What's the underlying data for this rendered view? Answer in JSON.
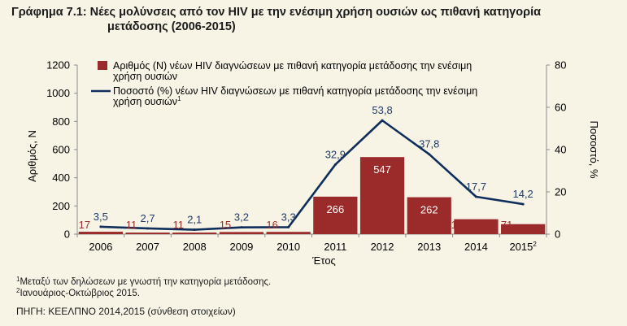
{
  "title": {
    "line1": "Γράφημα 7.1: Νέες μολύνσεις από τον HIV με την ενέσιμη χρήση ουσιών ως πιθανή κατηγορία",
    "line2": "μετάδοσης (2006-2015)"
  },
  "chart_data": {
    "type": "bar",
    "categories": [
      "2006",
      "2007",
      "2008",
      "2009",
      "2010",
      "2011",
      "2012",
      "2013",
      "2014",
      "2015"
    ],
    "category_superscripts": [
      "",
      "",
      "",
      "",
      "",
      "",
      "",
      "",
      "",
      "2"
    ],
    "xlabel": "Έτος",
    "ylabel": "Αριθμός, Ν",
    "y2label": "Ποσοστό, %",
    "ylim": [
      0,
      1200
    ],
    "y2lim": [
      0,
      80
    ],
    "yticks": [
      "0",
      "200",
      "400",
      "600",
      "800",
      "1000",
      "1200"
    ],
    "y2ticks": [
      "0",
      "20",
      "40",
      "60",
      "80"
    ],
    "series": [
      {
        "name": "Αριθμός (Ν) νέων HIV διαγνώσεων με πιθανή κατηγορία μετάδοσης την ενέσιμη χρήση ουσιών",
        "type": "bar",
        "axis": "left",
        "values": [
          17,
          11,
          11,
          15,
          16,
          266,
          547,
          262,
          106,
          71
        ],
        "labels": [
          "17",
          "11",
          "11",
          "15",
          "16",
          "266",
          "547",
          "262",
          "106",
          "71"
        ]
      },
      {
        "name": "Ποσοστό (%) νέων HIV διαγνώσεων με πιθανή κατηγορία μετάδοσης την ενέσιμη χρήση ουσιών",
        "name_superscript": "1",
        "type": "line",
        "axis": "right",
        "values": [
          3.5,
          2.7,
          2.1,
          3.2,
          3.3,
          32.9,
          53.8,
          37.8,
          17.7,
          14.2
        ],
        "labels": [
          "3,5",
          "2,7",
          "2,1",
          "3,2",
          "3,3",
          "32,9",
          "53,8",
          "37,8",
          "17,7",
          "14,2"
        ]
      }
    ],
    "legend": "top-inside",
    "grid": false,
    "colors": {
      "bar": "#9b2b2a",
      "line": "#0f2e5c",
      "bar_label_dark": "#ffffff",
      "bar_label_light": "#9b2b2a",
      "line_label": "#1f3a66"
    }
  },
  "footnotes": {
    "note1_mark": "1",
    "note1_text": "Μεταξύ των δηλώσεων με γνωστή την κατηγορία μετάδοσης.",
    "note2_mark": "2",
    "note2_text": "Ιανουάριος-Οκτώβριος 2015."
  },
  "source": "ΠΗΓΗ: ΚΕΕΛΠΝΟ 2014,2015 (σύνθεση στοιχείων)"
}
